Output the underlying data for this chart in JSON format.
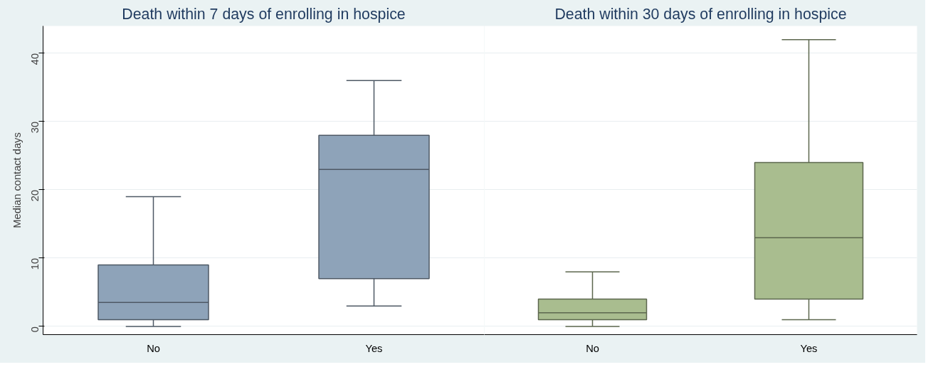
{
  "chart_data": [
    {
      "type": "box",
      "title": "Death within 7 days of enrolling in hospice",
      "ylabel": "Median contact days",
      "categories": [
        "No",
        "Yes"
      ],
      "ylim": [
        -1.2,
        44
      ],
      "yticks": [
        0,
        10,
        20,
        30,
        40
      ],
      "grid": "y",
      "series": [
        {
          "color": "#8ea3b9",
          "boxes": [
            {
              "low": 0,
              "q1": 1,
              "median": 3.5,
              "q3": 9,
              "high": 19
            },
            {
              "low": 3,
              "q1": 7,
              "median": 23,
              "q3": 28,
              "high": 36
            }
          ]
        }
      ]
    },
    {
      "type": "box",
      "title": "Death within 30 days of enrolling in hospice",
      "categories": [
        "No",
        "Yes"
      ],
      "ylim": [
        -1.2,
        44
      ],
      "yticks": [
        0,
        10,
        20,
        30,
        40
      ],
      "grid": "y",
      "tick_labels": "x",
      "series": [
        {
          "color": "#a9bd8f",
          "boxes": [
            {
              "low": 0,
              "q1": 1,
              "median": 2,
              "q3": 4,
              "high": 8
            },
            {
              "low": 1,
              "q1": 4,
              "median": 13,
              "q3": 24,
              "high": 42
            }
          ]
        }
      ]
    }
  ]
}
